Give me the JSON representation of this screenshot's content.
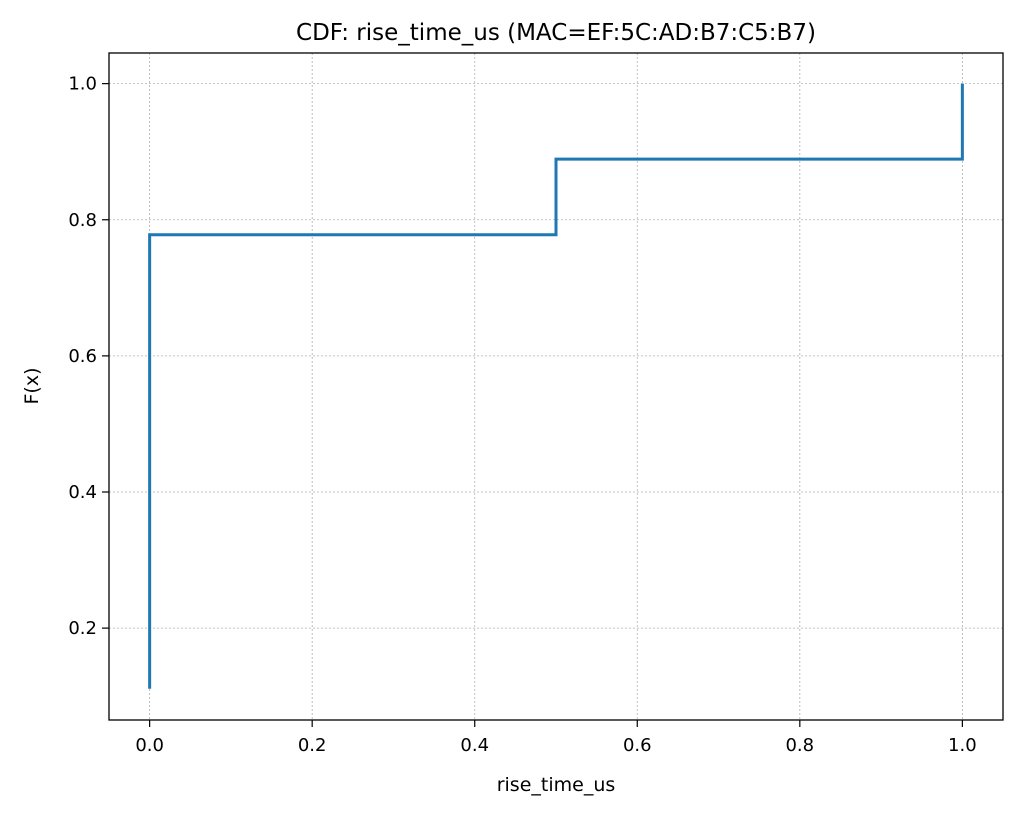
{
  "chart_data": {
    "type": "line",
    "step": true,
    "title": "CDF: rise_time_us (MAC=EF:5C:AD:B7:C5:B7)",
    "xlabel": "rise_time_us",
    "ylabel": "F(x)",
    "xlim": [
      -0.05,
      1.05
    ],
    "ylim": [
      0.065,
      1.045
    ],
    "xticks": [
      0.0,
      0.2,
      0.4,
      0.6,
      0.8,
      1.0
    ],
    "xtick_labels": [
      "0.0",
      "0.2",
      "0.4",
      "0.6",
      "0.8",
      "1.0"
    ],
    "yticks": [
      0.2,
      0.4,
      0.6,
      0.8,
      1.0
    ],
    "ytick_labels": [
      "0.2",
      "0.4",
      "0.6",
      "0.8",
      "1.0"
    ],
    "grid": true,
    "series": [
      {
        "color": "#1f77b4",
        "x": [
          0.0,
          0.0,
          0.5,
          0.5,
          1.0,
          1.0
        ],
        "y": [
          0.111,
          0.778,
          0.778,
          0.889,
          0.889,
          1.0
        ]
      }
    ]
  }
}
